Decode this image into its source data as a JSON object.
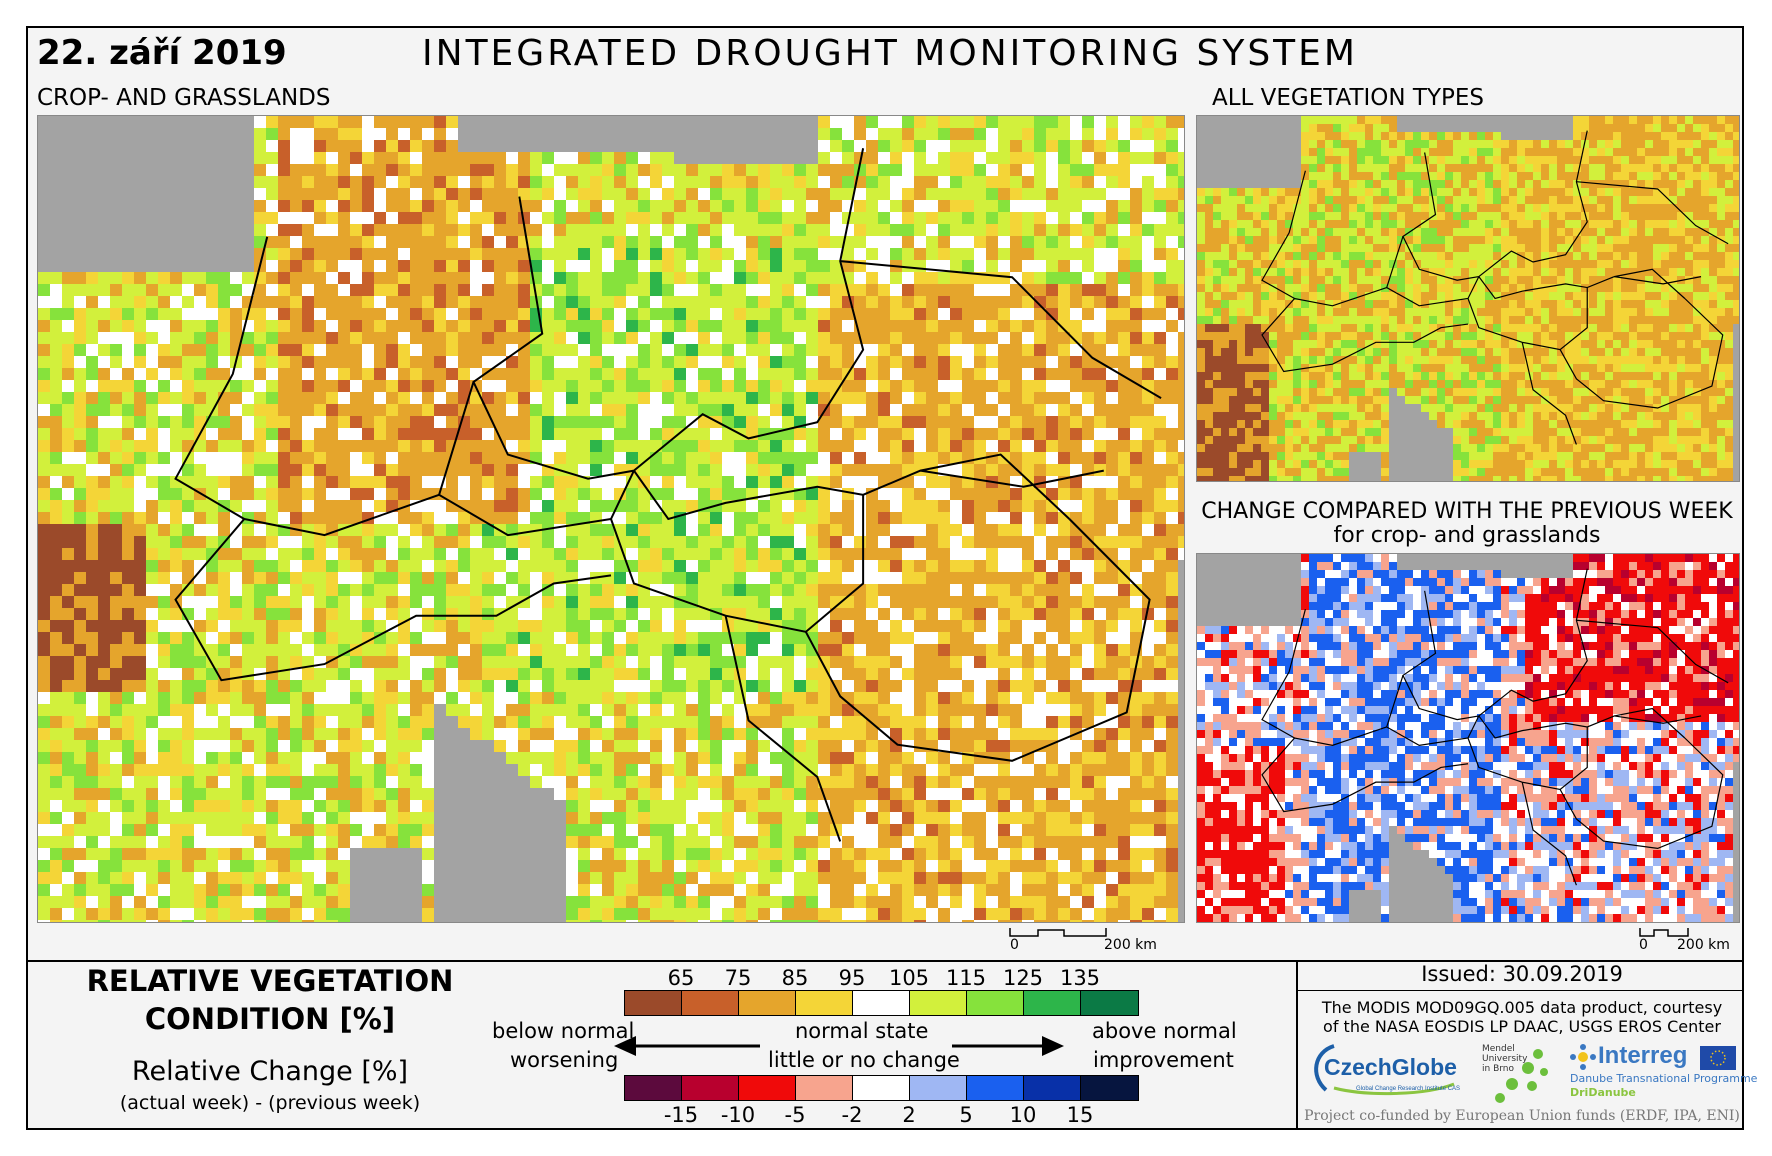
{
  "header": {
    "date": "22. září 2019",
    "title": "INTEGRATED DROUGHT MONITORING SYSTEM"
  },
  "panels": {
    "main_label": "CROP- AND GRASSLANDS",
    "all_veg_label": "ALL VEGETATION TYPES",
    "change_label_1": "CHANGE COMPARED WITH THE PREVIOUS WEEK",
    "change_label_2": "for crop- and grasslands"
  },
  "scalebar": {
    "zero": "0",
    "km": "200 km"
  },
  "legend": {
    "title_line1": "RELATIVE VEGETATION",
    "title_line2": "CONDITION [%]",
    "sub_title": "Relative Change [%]",
    "sub_note": "(actual week) - (previous week)",
    "condition_ticks": [
      "65",
      "75",
      "85",
      "95",
      "105",
      "115",
      "125",
      "135"
    ],
    "condition_colors": [
      "#9b4a2a",
      "#c8602a",
      "#e5a52c",
      "#f4d537",
      "#ffffff",
      "#d2f03c",
      "#86e23c",
      "#2db54a",
      "#0b7a45"
    ],
    "change_ticks": [
      "-15",
      "-10",
      "-5",
      "-2",
      "2",
      "5",
      "10",
      "15"
    ],
    "change_colors": [
      "#5c0a3d",
      "#b8002e",
      "#f00a0a",
      "#f7a48e",
      "#ffffff",
      "#9fb7f3",
      "#1a60ef",
      "#0830a8",
      "#06153f"
    ],
    "below_normal": "below normal",
    "worsening": "worsening",
    "normal_state": "normal state",
    "little_change": "little or no change",
    "above_normal": "above normal",
    "improvement": "improvement"
  },
  "info": {
    "issued": "Issued: 30.09.2019",
    "courtesy_1": "The MODIS MOD09GQ.005 data product, courtesy",
    "courtesy_2": "of the NASA EOSDIS LP DAAC, USGS EROS Center",
    "logo_czechglobe": "CzechGlobe",
    "logo_czechglobe_sub": "Global Change Research Institute CAS",
    "logo_mendel": "Mendel University in Brno",
    "logo_interreg": "Interreg",
    "logo_interreg_sub1": "Danube Transnational Programme",
    "logo_interreg_sub2": "DriDanube",
    "funded": "Project co-funded by European Union funds (ERDF, IPA, ENI)"
  },
  "map_palette": {
    "sea": "#a3a3a3",
    "border": "#000000"
  }
}
